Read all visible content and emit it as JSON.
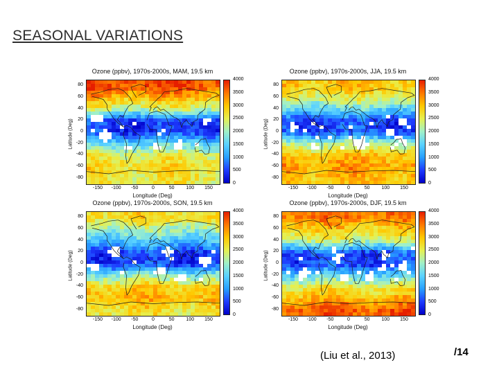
{
  "slide": {
    "title": "SEASONAL VARIATIONS",
    "citation": "(Liu et al., 2013)",
    "page_number": "/14"
  },
  "colors": {
    "title_text": "#2e2e2e",
    "colormap": [
      "#0000c8",
      "#1e3cff",
      "#28a0ff",
      "#5ad2ff",
      "#a0f0c8",
      "#e6f050",
      "#ffc800",
      "#ff7800",
      "#e61e00"
    ]
  },
  "chart_data": {
    "type": "heatmap",
    "description_units": "Ozone mixing ratio in ppbv",
    "colorbar": {
      "min": 0,
      "max": 4000,
      "ticks": [
        "4000",
        "3500",
        "3000",
        "2500",
        "2000",
        "1500",
        "1000",
        "500",
        "0"
      ]
    },
    "axes": {
      "ylabel": "Latitude (Deg)",
      "xlabel": "Longitude (Deg)",
      "lat_ticks": [
        "80",
        "60",
        "40",
        "20",
        "0",
        "-20",
        "-40",
        "-60",
        "-80"
      ],
      "lon_ticks": [
        "-150",
        "-100",
        "-50",
        "0",
        "50",
        "100",
        "150"
      ],
      "lat_range": [
        -90,
        90
      ],
      "lon_range": [
        -180,
        180
      ]
    },
    "panels": [
      {
        "season": "MAM",
        "title": "Ozone (ppbv), 1970s-2000s, MAM, 19.5 km",
        "lat_profile": [
          {
            "lat": 80,
            "ppbv": 3800
          },
          {
            "lat": 60,
            "ppbv": 3100
          },
          {
            "lat": 40,
            "ppbv": 2300
          },
          {
            "lat": 20,
            "ppbv": 500
          },
          {
            "lat": 0,
            "ppbv": 450
          },
          {
            "lat": -20,
            "ppbv": 1600
          },
          {
            "lat": -40,
            "ppbv": 2500
          },
          {
            "lat": -60,
            "ppbv": 2800
          },
          {
            "lat": -80,
            "ppbv": 2600
          }
        ]
      },
      {
        "season": "JJA",
        "title": "Ozone (ppbv), 1970s-2000s, JJA, 19.5 km",
        "lat_profile": [
          {
            "lat": 80,
            "ppbv": 3000
          },
          {
            "lat": 60,
            "ppbv": 2500
          },
          {
            "lat": 40,
            "ppbv": 1600
          },
          {
            "lat": 20,
            "ppbv": 500
          },
          {
            "lat": 0,
            "ppbv": 550
          },
          {
            "lat": -20,
            "ppbv": 2200
          },
          {
            "lat": -40,
            "ppbv": 3000
          },
          {
            "lat": -60,
            "ppbv": 3300
          },
          {
            "lat": -80,
            "ppbv": 3000
          }
        ]
      },
      {
        "season": "SON",
        "title": "Ozone (ppbv), 1970s-2000s, SON, 19.5 km",
        "lat_profile": [
          {
            "lat": 80,
            "ppbv": 2800
          },
          {
            "lat": 60,
            "ppbv": 2100
          },
          {
            "lat": 40,
            "ppbv": 1400
          },
          {
            "lat": 20,
            "ppbv": 500
          },
          {
            "lat": 0,
            "ppbv": 450
          },
          {
            "lat": -20,
            "ppbv": 1900
          },
          {
            "lat": -40,
            "ppbv": 2900
          },
          {
            "lat": -60,
            "ppbv": 3100
          },
          {
            "lat": -80,
            "ppbv": 2700
          }
        ]
      },
      {
        "season": "DJF",
        "title": "Ozone (ppbv), 1970s-2000s, DJF, 19.5 km",
        "lat_profile": [
          {
            "lat": 80,
            "ppbv": 3500
          },
          {
            "lat": 60,
            "ppbv": 2900
          },
          {
            "lat": 40,
            "ppbv": 2300
          },
          {
            "lat": 20,
            "ppbv": 650
          },
          {
            "lat": 0,
            "ppbv": 500
          },
          {
            "lat": -20,
            "ppbv": 1500
          },
          {
            "lat": -40,
            "ppbv": 2600
          },
          {
            "lat": -60,
            "ppbv": 3100
          },
          {
            "lat": -80,
            "ppbv": 3700
          }
        ]
      }
    ]
  }
}
